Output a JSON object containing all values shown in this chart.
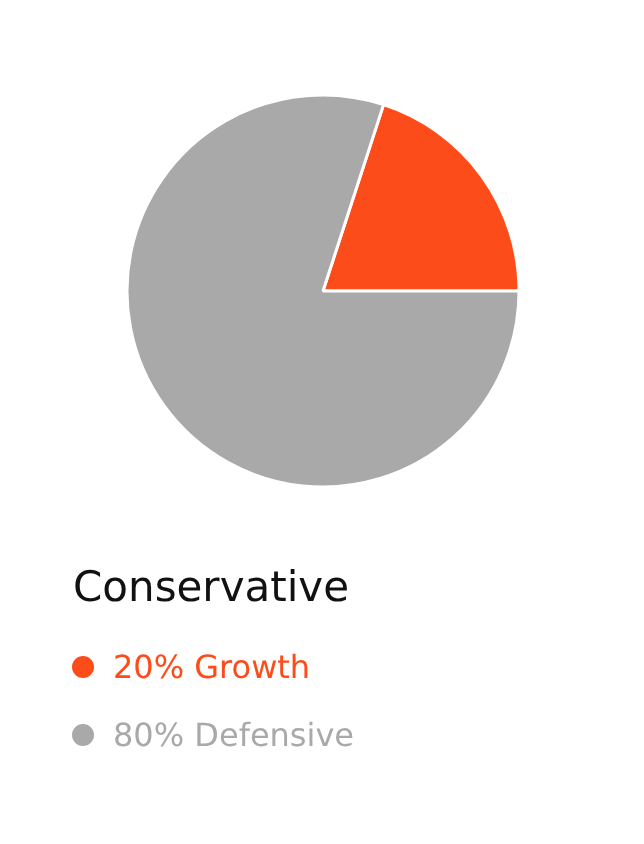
{
  "chart_data": {
    "type": "pie",
    "title": "Conservative",
    "categories": [
      "Growth",
      "Defensive"
    ],
    "values": [
      20,
      80
    ],
    "value_labels": [
      "20%",
      "80%"
    ],
    "colors": [
      "#fc4c1a",
      "#a9a9a9"
    ],
    "legend": "bottom"
  }
}
